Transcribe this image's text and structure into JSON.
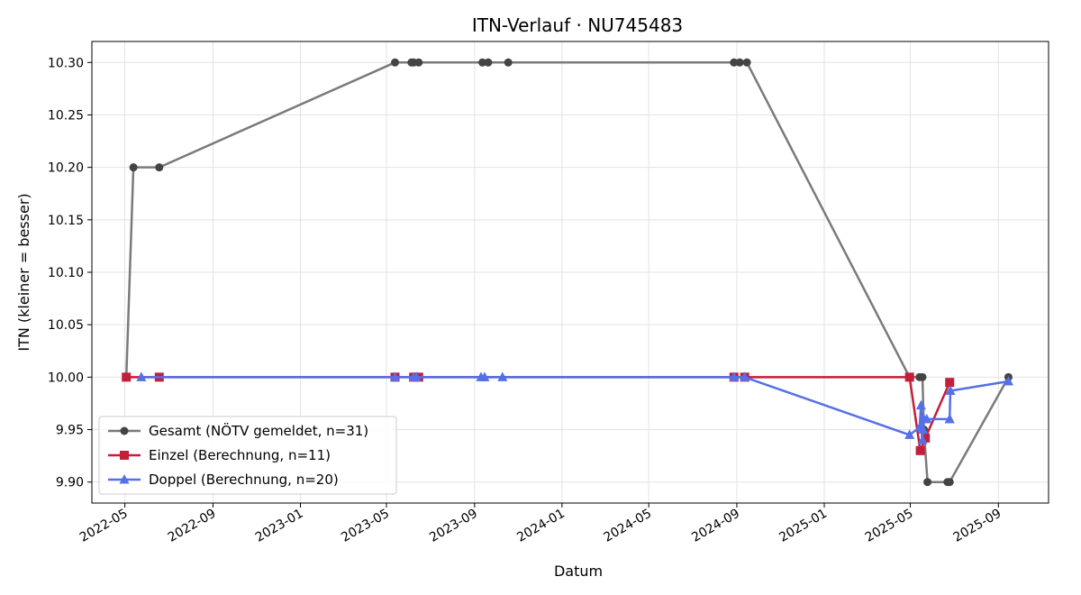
{
  "chart_data": {
    "type": "line",
    "title": "ITN-Verlauf · NU745483",
    "xlabel": "Datum",
    "ylabel": "ITN  (kleiner = besser)",
    "x_type": "date",
    "xlim": [
      "2022-03-16",
      "2025-11-10"
    ],
    "ylim": [
      9.88,
      10.32
    ],
    "x_ticks": [
      "2022-05-01",
      "2022-09-01",
      "2023-01-01",
      "2023-05-01",
      "2023-09-01",
      "2024-01-01",
      "2024-05-01",
      "2024-09-01",
      "2025-01-01",
      "2025-05-01",
      "2025-09-01"
    ],
    "x_tick_labels": [
      "2022-05",
      "2022-09",
      "2023-01",
      "2023-05",
      "2023-09",
      "2024-01",
      "2024-05",
      "2024-09",
      "2025-01",
      "2025-05",
      "2025-09"
    ],
    "y_ticks": [
      9.9,
      9.95,
      10.0,
      10.05,
      10.1,
      10.15,
      10.2,
      10.25,
      10.3
    ],
    "y_tick_labels": [
      "9.90",
      "9.95",
      "10.00",
      "10.05",
      "10.10",
      "10.15",
      "10.20",
      "10.25",
      "10.30"
    ],
    "grid": true,
    "legend_position": "lower-left",
    "series": [
      {
        "name": "Gesamt (NÖTV gemeldet, n=31)",
        "color": "#7a7a7a",
        "marker_color": "#444444",
        "marker": "circle",
        "x": [
          "2022-05-03",
          "2022-05-13",
          "2022-06-18",
          "2023-05-13",
          "2023-06-05",
          "2023-06-08",
          "2023-06-15",
          "2023-09-12",
          "2023-09-20",
          "2023-10-18",
          "2024-08-28",
          "2024-09-05",
          "2024-09-15",
          "2025-04-30",
          "2025-05-14",
          "2025-05-18",
          "2025-05-20",
          "2025-05-25",
          "2025-06-22",
          "2025-06-25",
          "2025-09-15"
        ],
        "y": [
          10.0,
          10.2,
          10.2,
          10.3,
          10.3,
          10.3,
          10.3,
          10.3,
          10.3,
          10.3,
          10.3,
          10.3,
          10.3,
          10.0,
          10.0,
          10.0,
          9.95,
          9.9,
          9.9,
          9.9,
          10.0
        ]
      },
      {
        "name": "Einzel (Berechnung, n=11)",
        "color": "#c41e3a",
        "marker_color": "#c41e3a",
        "marker": "square",
        "x": [
          "2022-05-03",
          "2022-06-18",
          "2023-05-13",
          "2023-06-08",
          "2023-06-15",
          "2024-08-28",
          "2024-09-12",
          "2025-04-30",
          "2025-05-15",
          "2025-05-22",
          "2025-06-25"
        ],
        "y": [
          10.0,
          10.0,
          10.0,
          10.0,
          10.0,
          10.0,
          10.0,
          10.0,
          9.93,
          9.942,
          9.995
        ]
      },
      {
        "name": "Doppel (Berechnung, n=20)",
        "color": "#5470e8",
        "marker_color": "#5470e8",
        "marker": "triangle",
        "x": [
          "2022-05-24",
          "2023-05-13",
          "2023-06-08",
          "2023-06-12",
          "2023-09-10",
          "2023-09-15",
          "2023-10-10",
          "2024-08-28",
          "2024-09-12",
          "2025-04-30",
          "2025-05-14",
          "2025-05-16",
          "2025-05-18",
          "2025-05-19",
          "2025-05-20",
          "2025-05-24",
          "2025-06-25",
          "2025-06-25",
          "2025-06-26",
          "2025-09-15"
        ],
        "y": [
          10.0,
          10.0,
          10.0,
          10.0,
          10.0,
          10.0,
          10.0,
          10.0,
          10.0,
          9.945,
          9.952,
          9.973,
          9.94,
          9.95,
          9.96,
          9.96,
          9.96,
          9.96,
          9.987,
          9.996
        ]
      }
    ]
  }
}
